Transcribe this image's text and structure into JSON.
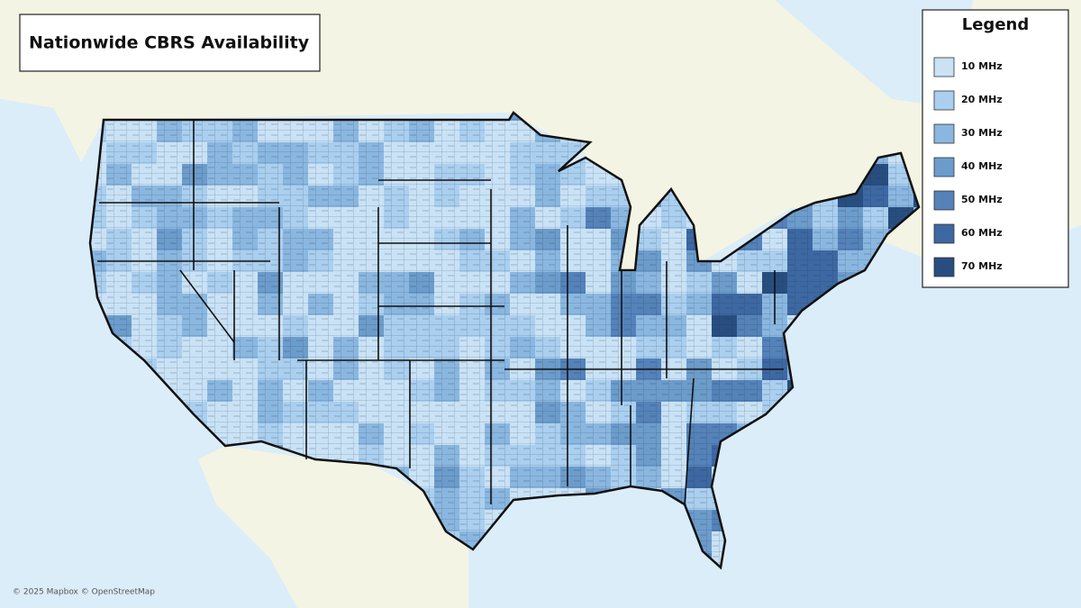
{
  "map": {
    "title": "Nationwide CBRS Availability",
    "legend": {
      "title": "Legend",
      "items": [
        {
          "label": "10 MHz",
          "color": "#c9e2f6"
        },
        {
          "label": "20 MHz",
          "color": "#aacfef"
        },
        {
          "label": "30 MHz",
          "color": "#8ab7e0"
        },
        {
          "label": "40 MHz",
          "color": "#6c9ccb"
        },
        {
          "label": "50 MHz",
          "color": "#5482b9"
        },
        {
          "label": "60 MHz",
          "color": "#3d68a2"
        },
        {
          "label": "70 MHz",
          "color": "#284e80"
        }
      ]
    },
    "attribution": "© 2025 Mapbox © OpenStreetMap"
  }
}
